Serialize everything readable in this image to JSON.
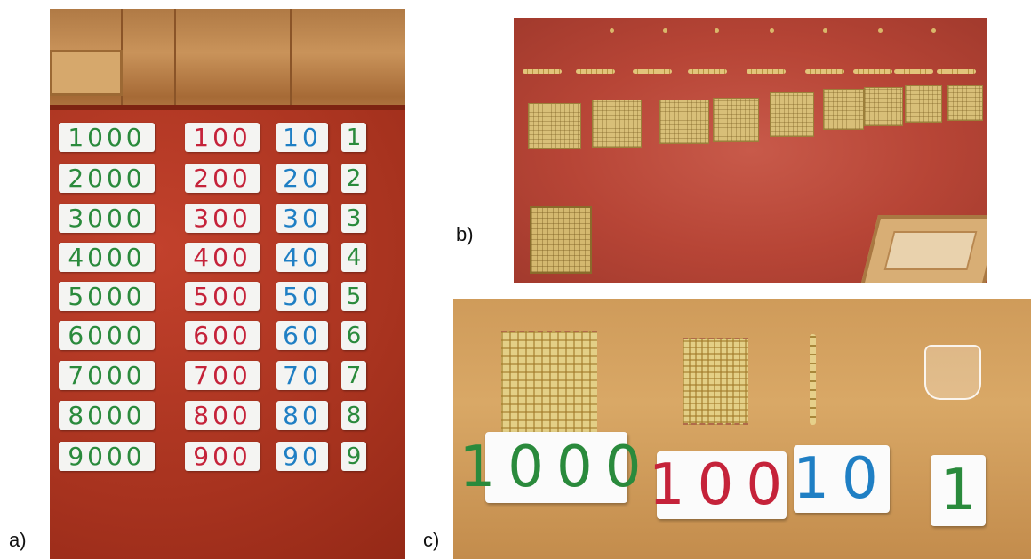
{
  "labels": {
    "a": "a)",
    "b": "b)",
    "c": "c)"
  },
  "photo_a": {
    "col_thousands": [
      "1000",
      "2000",
      "3000",
      "4000",
      "5000",
      "6000",
      "7000",
      "8000",
      "9000"
    ],
    "col_hundreds": [
      "100",
      "200",
      "300",
      "400",
      "500",
      "600",
      "700",
      "800",
      "900"
    ],
    "col_tens": [
      "10",
      "20",
      "30",
      "40",
      "50",
      "60",
      "70",
      "80",
      "90"
    ],
    "col_units": [
      "1",
      "2",
      "3",
      "4",
      "5",
      "6",
      "7",
      "8",
      "9"
    ],
    "colors": {
      "thousands": "#2a8a3c",
      "hundreds": "#c5233a",
      "tens": "#1f7fc4",
      "units": "#2a8a3c",
      "mat": "#a8331f"
    }
  },
  "photo_c": {
    "cards": [
      "1000",
      "100",
      "10",
      "1"
    ],
    "colors": [
      "#2a8a3c",
      "#c5233a",
      "#1f7fc4",
      "#2a8a3c"
    ]
  }
}
